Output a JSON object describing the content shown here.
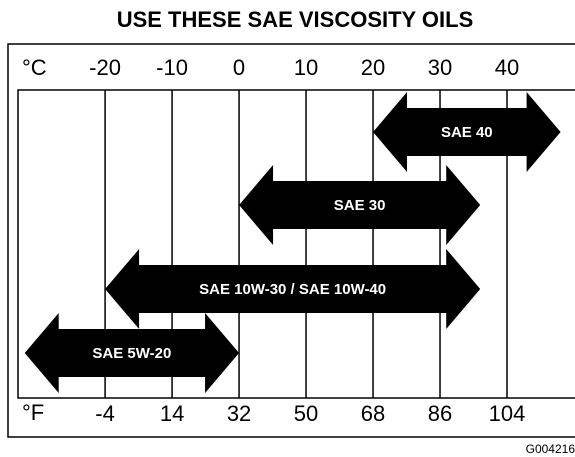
{
  "chart_data": {
    "type": "range-arrow",
    "title": "USE THESE SAE VISCOSITY OILS",
    "x_unit": "°C",
    "x2_unit": "°F",
    "xlim": [
      -33,
      50
    ],
    "xticks": [
      -20,
      -10,
      0,
      10,
      20,
      30,
      40
    ],
    "x2ticks": [
      -4,
      14,
      32,
      50,
      68,
      86,
      104
    ],
    "series": [
      {
        "name": "SAE 40",
        "color": "#000000",
        "range": [
          20,
          48
        ]
      },
      {
        "name": "SAE 30",
        "color": "#000000",
        "range": [
          0,
          36
        ]
      },
      {
        "name": "SAE 10W-30 / SAE 10W-40",
        "color": "#000000",
        "range": [
          -20,
          36
        ]
      },
      {
        "name": "SAE 5W-20",
        "color": "#000000",
        "range": [
          -32,
          0
        ]
      }
    ],
    "grid": true,
    "figure_code": "G004216"
  }
}
